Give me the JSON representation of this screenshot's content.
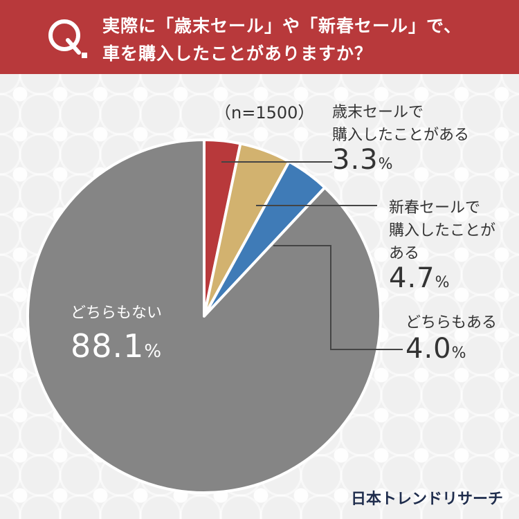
{
  "question": {
    "line1": "実際に「歳末セール」や「新春セール」で、",
    "line2": "車を購入したことがありますか？"
  },
  "sample_size": "（n=1500）",
  "brand": "日本トレンドリサーチ",
  "colors": {
    "header": "#b8393b",
    "year_end": "#b8393b",
    "new_year": "#d2b26f",
    "both": "#3f7bb7",
    "neither": "#858585"
  },
  "labels": {
    "year_end_line1": "歳末セールで",
    "year_end_line2": "購入したことがある",
    "year_end_value": "3.3",
    "new_year_line1": "新春セールで",
    "new_year_line2": "購入したことが",
    "new_year_line3": "ある",
    "new_year_value": "4.7",
    "both_line1": "どちらもある",
    "both_value": "4.0",
    "neither_line1": "どちらもない",
    "neither_value": "88.1",
    "percent": "%"
  },
  "chart_data": {
    "type": "pie",
    "title": "実際に「歳末セール」や「新春セール」で、車を購入したことがありますか？",
    "n": 1500,
    "slices": [
      {
        "label": "歳末セールで購入したことがある",
        "value": 3.3,
        "color": "#b8393b"
      },
      {
        "label": "新春セールで購入したことがある",
        "value": 4.7,
        "color": "#d2b26f"
      },
      {
        "label": "どちらもある",
        "value": 4.0,
        "color": "#3f7bb7"
      },
      {
        "label": "どちらもない",
        "value": 88.1,
        "color": "#858585"
      }
    ]
  }
}
